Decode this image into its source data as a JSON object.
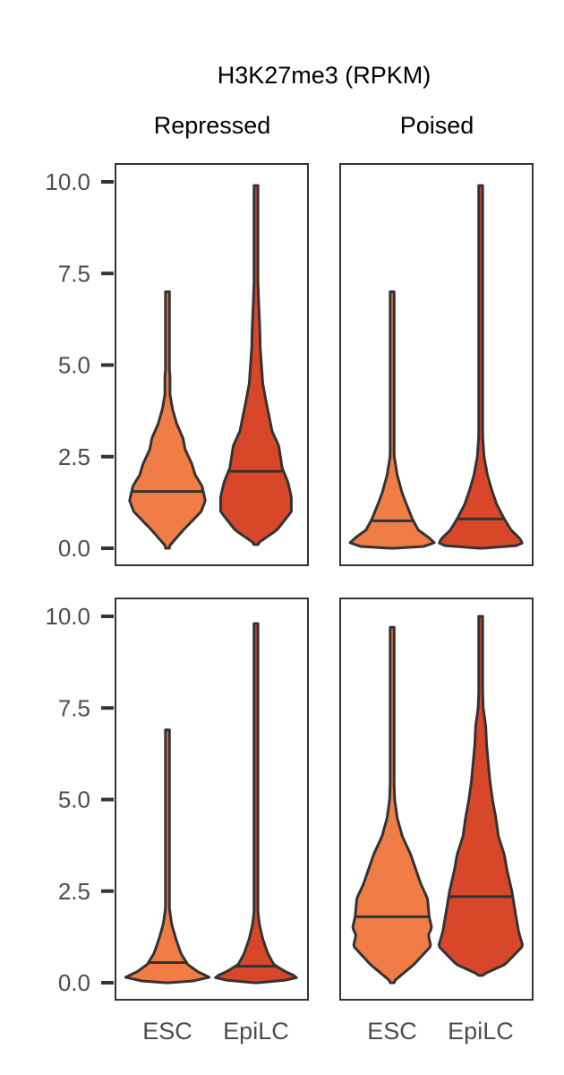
{
  "figure": {
    "title": "H3K27me3 (RPKM)",
    "column_titles": [
      "Repressed",
      "Poised"
    ]
  },
  "colors": {
    "ESC": "#f07d45",
    "EpiLC": "#d9472a",
    "outline": "#333333",
    "frame": "#333333",
    "tick_text": "#4d4d4d"
  },
  "chart_data": [
    {
      "type": "violin",
      "panel": "top-left",
      "column": "Repressed",
      "categories": [
        "ESC",
        "EpiLC"
      ],
      "ylim": [
        0,
        10
      ],
      "yticks": [
        "0.0",
        "2.5",
        "5.0",
        "7.5",
        "10.0"
      ],
      "series": [
        {
          "name": "ESC",
          "min": 0.0,
          "median": 1.55,
          "max": 7.0,
          "profile": [
            [
              0.0,
              0.0
            ],
            [
              0.5,
              0.38
            ],
            [
              1.0,
              0.8
            ],
            [
              1.3,
              0.9
            ],
            [
              1.7,
              0.82
            ],
            [
              2.0,
              0.66
            ],
            [
              2.3,
              0.58
            ],
            [
              2.7,
              0.42
            ],
            [
              3.0,
              0.37
            ],
            [
              3.4,
              0.22
            ],
            [
              3.8,
              0.12
            ],
            [
              4.2,
              0.06
            ],
            [
              4.7,
              0.06
            ],
            [
              5.2,
              0.02
            ],
            [
              7.0,
              0.0
            ]
          ]
        },
        {
          "name": "EpiLC",
          "min": 0.1,
          "median": 2.1,
          "max": 9.9,
          "profile": [
            [
              0.1,
              0.0
            ],
            [
              0.5,
              0.5
            ],
            [
              1.0,
              0.84
            ],
            [
              1.4,
              0.84
            ],
            [
              1.8,
              0.76
            ],
            [
              2.2,
              0.62
            ],
            [
              2.8,
              0.54
            ],
            [
              3.2,
              0.38
            ],
            [
              3.5,
              0.33
            ],
            [
              4.0,
              0.24
            ],
            [
              4.5,
              0.16
            ],
            [
              5.0,
              0.13
            ],
            [
              5.5,
              0.1
            ],
            [
              6.0,
              0.09
            ],
            [
              6.8,
              0.06
            ],
            [
              7.5,
              0.04
            ],
            [
              8.5,
              0.02
            ],
            [
              9.9,
              0.0
            ]
          ]
        }
      ]
    },
    {
      "type": "violin",
      "panel": "top-right",
      "column": "Poised",
      "categories": [
        "ESC",
        "EpiLC"
      ],
      "ylim": [
        0,
        10
      ],
      "yticks": [
        "0.0",
        "2.5",
        "5.0",
        "7.5",
        "10.0"
      ],
      "series": [
        {
          "name": "ESC",
          "min": 0.0,
          "median": 0.75,
          "max": 7.0,
          "profile": [
            [
              0.0,
              0.0
            ],
            [
              0.05,
              0.75
            ],
            [
              0.15,
              1.0
            ],
            [
              0.3,
              0.86
            ],
            [
              0.5,
              0.62
            ],
            [
              0.8,
              0.48
            ],
            [
              1.2,
              0.34
            ],
            [
              1.5,
              0.24
            ],
            [
              2.0,
              0.12
            ],
            [
              2.5,
              0.05
            ],
            [
              3.0,
              0.04
            ],
            [
              3.5,
              0.03
            ],
            [
              4.0,
              0.015
            ],
            [
              7.0,
              0.0
            ]
          ]
        },
        {
          "name": "EpiLC",
          "min": 0.0,
          "median": 0.8,
          "max": 9.9,
          "profile": [
            [
              0.0,
              0.0
            ],
            [
              0.05,
              0.8
            ],
            [
              0.15,
              1.0
            ],
            [
              0.3,
              0.9
            ],
            [
              0.5,
              0.72
            ],
            [
              0.8,
              0.56
            ],
            [
              1.2,
              0.38
            ],
            [
              1.6,
              0.26
            ],
            [
              2.0,
              0.16
            ],
            [
              2.5,
              0.08
            ],
            [
              3.0,
              0.05
            ],
            [
              4.0,
              0.03
            ],
            [
              5.5,
              0.02
            ],
            [
              9.9,
              0.0
            ]
          ]
        }
      ]
    },
    {
      "type": "violin",
      "panel": "bottom-left",
      "column": "Repressed",
      "categories": [
        "ESC",
        "EpiLC"
      ],
      "ylim": [
        0,
        10
      ],
      "yticks": [
        "0.0",
        "2.5",
        "5.0",
        "7.5",
        "10.0"
      ],
      "series": [
        {
          "name": "ESC",
          "min": 0.0,
          "median": 0.55,
          "max": 6.9,
          "profile": [
            [
              0.0,
              0.0
            ],
            [
              0.05,
              0.62
            ],
            [
              0.15,
              1.0
            ],
            [
              0.3,
              0.72
            ],
            [
              0.5,
              0.48
            ],
            [
              0.8,
              0.32
            ],
            [
              1.2,
              0.2
            ],
            [
              1.6,
              0.1
            ],
            [
              2.0,
              0.05
            ],
            [
              2.5,
              0.03
            ],
            [
              3.5,
              0.015
            ],
            [
              6.9,
              0.0
            ]
          ]
        },
        {
          "name": "EpiLC",
          "min": 0.0,
          "median": 0.45,
          "max": 9.8,
          "profile": [
            [
              0.0,
              0.0
            ],
            [
              0.05,
              0.62
            ],
            [
              0.15,
              1.0
            ],
            [
              0.3,
              0.7
            ],
            [
              0.5,
              0.42
            ],
            [
              0.8,
              0.28
            ],
            [
              1.2,
              0.16
            ],
            [
              1.6,
              0.08
            ],
            [
              2.0,
              0.04
            ],
            [
              3.0,
              0.015
            ],
            [
              9.8,
              0.0
            ]
          ]
        }
      ]
    },
    {
      "type": "violin",
      "panel": "bottom-right",
      "column": "Poised",
      "categories": [
        "ESC",
        "EpiLC"
      ],
      "ylim": [
        0,
        10
      ],
      "yticks": [
        "0.0",
        "2.5",
        "5.0",
        "7.5",
        "10.0"
      ],
      "series": [
        {
          "name": "ESC",
          "min": 0.0,
          "median": 1.8,
          "max": 9.7,
          "profile": [
            [
              0.0,
              0.0
            ],
            [
              0.5,
              0.52
            ],
            [
              1.0,
              0.92
            ],
            [
              1.3,
              0.86
            ],
            [
              1.5,
              0.94
            ],
            [
              1.8,
              0.88
            ],
            [
              2.3,
              0.84
            ],
            [
              2.7,
              0.68
            ],
            [
              3.1,
              0.56
            ],
            [
              3.5,
              0.44
            ],
            [
              4.0,
              0.24
            ],
            [
              4.5,
              0.12
            ],
            [
              5.0,
              0.06
            ],
            [
              6.0,
              0.03
            ],
            [
              7.0,
              0.02
            ],
            [
              9.7,
              0.0
            ]
          ]
        },
        {
          "name": "EpiLC",
          "min": 0.2,
          "median": 2.35,
          "max": 10.0,
          "profile": [
            [
              0.2,
              0.0
            ],
            [
              0.5,
              0.58
            ],
            [
              1.0,
              1.0
            ],
            [
              1.4,
              0.9
            ],
            [
              1.8,
              0.84
            ],
            [
              2.5,
              0.74
            ],
            [
              3.1,
              0.62
            ],
            [
              3.5,
              0.56
            ],
            [
              4.0,
              0.42
            ],
            [
              4.5,
              0.36
            ],
            [
              5.0,
              0.28
            ],
            [
              5.5,
              0.22
            ],
            [
              6.0,
              0.18
            ],
            [
              6.5,
              0.14
            ],
            [
              7.0,
              0.12
            ],
            [
              7.5,
              0.06
            ],
            [
              8.5,
              0.03
            ],
            [
              10.0,
              0.0
            ]
          ]
        }
      ]
    }
  ]
}
